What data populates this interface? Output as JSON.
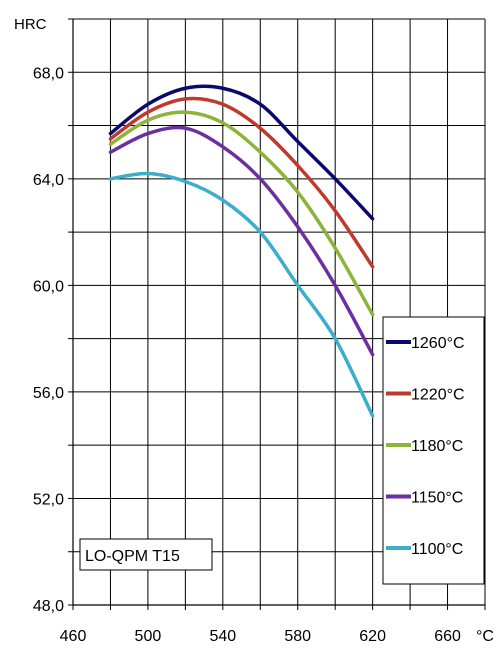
{
  "chart_data": {
    "type": "line",
    "y_unit_label": "HRC",
    "x_unit_label": "°C",
    "annotation": "LO-QPM T15",
    "xlim": [
      460,
      680
    ],
    "ylim": [
      48,
      70
    ],
    "x_ticks": [
      460,
      500,
      540,
      580,
      620,
      660
    ],
    "x_tick_labels": [
      "460",
      "500",
      "540",
      "580",
      "620",
      "660"
    ],
    "y_ticks": [
      48,
      52,
      56,
      60,
      64,
      68
    ],
    "y_tick_labels": [
      "48,0",
      "52,0",
      "56,0",
      "60,0",
      "64,0",
      "68,0"
    ],
    "grid": true,
    "legend_position": "bottom-right",
    "series": [
      {
        "name": "1260°C",
        "color": "#0a0a6e",
        "x": [
          480,
          500,
          520,
          540,
          560,
          580,
          600,
          620
        ],
        "y": [
          65.7,
          66.8,
          67.4,
          67.4,
          66.8,
          65.4,
          64.0,
          62.5
        ]
      },
      {
        "name": "1220°C",
        "color": "#c0392b",
        "x": [
          480,
          500,
          520,
          540,
          560,
          580,
          600,
          620
        ],
        "y": [
          65.5,
          66.5,
          67.0,
          66.8,
          65.9,
          64.5,
          62.8,
          60.7
        ]
      },
      {
        "name": "1180°C",
        "color": "#8db33a",
        "x": [
          480,
          500,
          520,
          540,
          560,
          580,
          600,
          620
        ],
        "y": [
          65.3,
          66.2,
          66.5,
          66.1,
          65.0,
          63.5,
          61.4,
          58.9
        ]
      },
      {
        "name": "1150°C",
        "color": "#6b2fa0",
        "x": [
          480,
          500,
          520,
          540,
          560,
          580,
          600,
          620
        ],
        "y": [
          65.0,
          65.7,
          65.9,
          65.2,
          64.0,
          62.2,
          60.0,
          57.4
        ]
      },
      {
        "name": "1100°C",
        "color": "#3aaecb",
        "x": [
          480,
          500,
          520,
          540,
          560,
          580,
          600,
          620
        ],
        "y": [
          64.0,
          64.2,
          63.9,
          63.2,
          62.0,
          60.0,
          58.0,
          55.1
        ]
      }
    ]
  }
}
